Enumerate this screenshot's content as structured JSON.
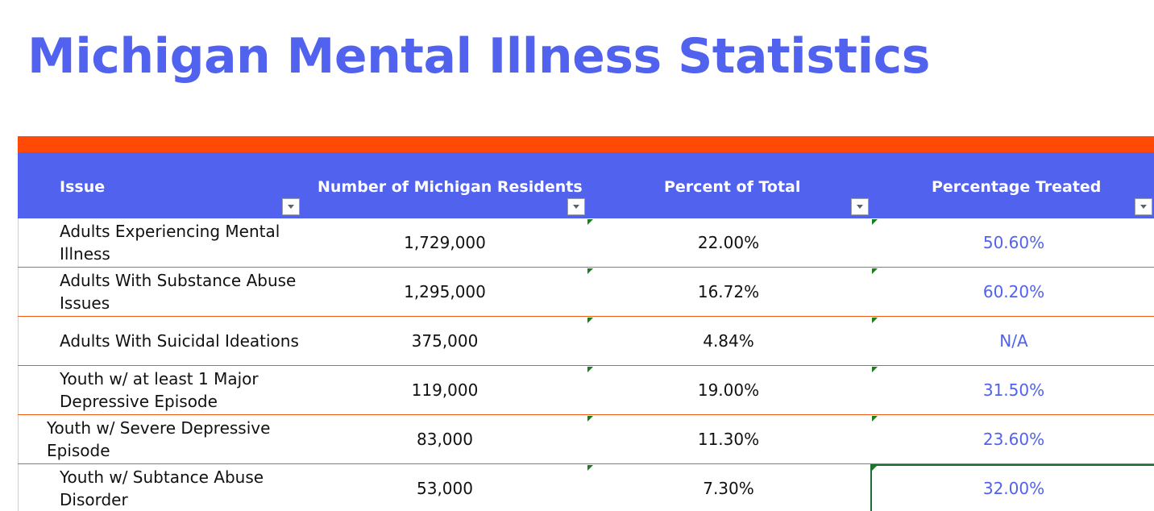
{
  "title": "Michigan Mental Illness Statistics",
  "colors": {
    "title": "#5062ee",
    "header_bg": "#5062ee",
    "accent_bar": "#ff4a07",
    "row_border": "#f05a14",
    "treated_text": "#5062ee",
    "error_marker": "#1a7f1a"
  },
  "table": {
    "columns": [
      "Issue",
      "Number of Michigan Residents",
      "Percent of Total",
      "Percentage Treated"
    ],
    "filter_icon": "chevron-down-icon",
    "rows": [
      {
        "issue": "Adults Experiencing Mental Illness",
        "number": "1,729,000",
        "percent": "22.00%",
        "treated": "50.60%"
      },
      {
        "issue": "Adults With Substance Abuse Issues",
        "number": "1,295,000",
        "percent": "16.72%",
        "treated": "60.20%"
      },
      {
        "issue": "Adults With Suicidal Ideations",
        "number": "375,000",
        "percent": "4.84%",
        "treated": "N/A"
      },
      {
        "issue": "Youth w/ at least 1 Major Depressive Episode",
        "number": "119,000",
        "percent": "19.00%",
        "treated": "31.50%"
      },
      {
        "issue": "Youth w/ Severe Depressive Episode",
        "number": "83,000",
        "percent": "11.30%",
        "treated": "23.60%"
      },
      {
        "issue": "Youth w/ Subtance Abuse Disorder",
        "number": "53,000",
        "percent": "7.30%",
        "treated": "32.00%"
      }
    ]
  }
}
